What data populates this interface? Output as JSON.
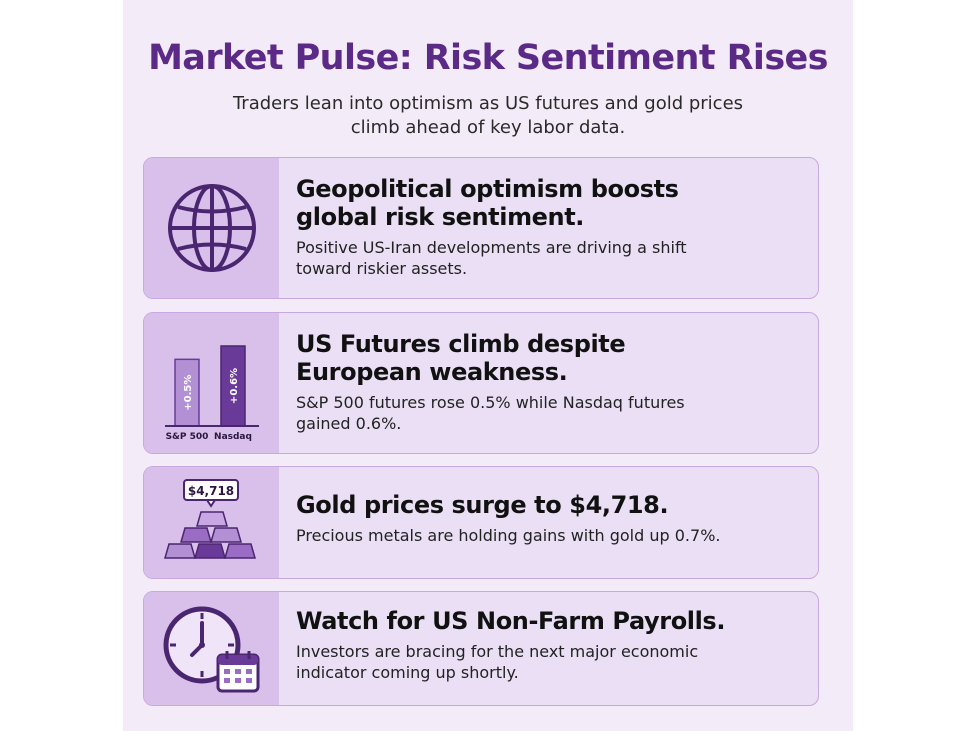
{
  "header": {
    "title": "Market Pulse: Risk Sentiment Rises",
    "subtitle_line1": "Traders lean into optimism as US futures and gold prices",
    "subtitle_line2": "climb ahead of key labor data."
  },
  "cards": [
    {
      "icon": "globe-icon",
      "heading_line1": "Geopolitical optimism boosts",
      "heading_line2": "global risk sentiment.",
      "body_line1": "Positive US-Iran developments are driving a shift",
      "body_line2": "toward riskier assets."
    },
    {
      "icon": "bar-chart-icon",
      "heading_line1": "US Futures climb despite",
      "heading_line2": "European weakness.",
      "body_line1": "S&P 500 futures rose 0.5% while Nasdaq futures",
      "body_line2": "gained 0.6%.",
      "mini_chart": {
        "categories": [
          "S&P 500",
          "Nasdaq"
        ],
        "values": [
          0.5,
          0.6
        ],
        "value_labels": [
          "+0.5%",
          "+0.6%"
        ]
      }
    },
    {
      "icon": "gold-bars-icon",
      "heading_line1": "Gold prices surge to $4,718.",
      "body_line1": "Precious metals are holding gains with gold up 0.7%.",
      "price_tag": "$4,718"
    },
    {
      "icon": "clock-calendar-icon",
      "heading_line1": "Watch for US Non-Farm Payrolls.",
      "body_line1": "Investors are bracing for the next major economic",
      "body_line2": "indicator coming up shortly."
    }
  ],
  "colors": {
    "title": "#5b2a86",
    "panel_bg": "#f3ecf8",
    "card_bg": "#eadff4",
    "icon_bg": "#d8c0ea",
    "icon_stroke": "#4a2570",
    "bar_light": "#b38fd3",
    "bar_dark": "#6a3a99"
  }
}
